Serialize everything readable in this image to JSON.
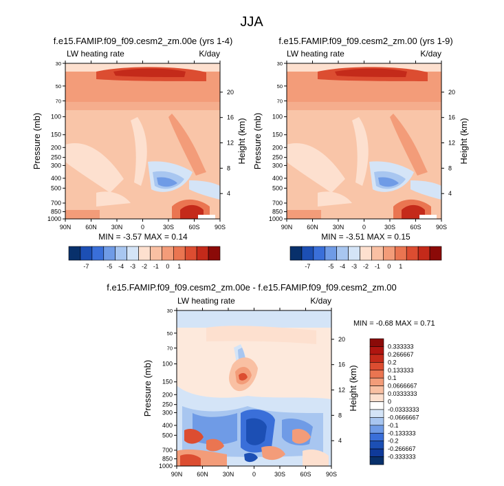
{
  "title": "JJA",
  "panels": [
    {
      "title": "f.e15.FAMIP.f09_f09.cesm2_zm.00e (yrs 1-4)",
      "left_label": "LW heating rate",
      "right_label": "K/day",
      "ylabel": "Pressure (mb)",
      "y2label": "Height (km)",
      "min_max": "MIN =  -3.57  MAX =  0.14"
    },
    {
      "title": "f.e15.FAMIP.f09_f09.cesm2_zm.00 (yrs 1-9)",
      "left_label": "LW heating rate",
      "right_label": "K/day",
      "ylabel": "Pressure (mb)",
      "y2label": "Height (km)",
      "min_max": "MIN =  -3.51  MAX =  0.15"
    },
    {
      "title": "f.e15.FAMIP.f09_f09.cesm2_zm.00e - f.e15.FAMIP.f09_f09.cesm2_zm.00",
      "left_label": "LW heating rate",
      "right_label": "K/day",
      "ylabel": "Pressure (mb)",
      "y2label": "Height (km)",
      "min_max": "MIN =  -0.68  MAX =  0.71"
    }
  ],
  "chart_data": [
    {
      "type": "heatmap",
      "title": "f.e15.FAMIP.f09_f09.cesm2_zm.00e (yrs 1-4)",
      "xlabel": "",
      "ylabel": "Pressure (mb)",
      "x_ticks": [
        "90N",
        "60N",
        "30N",
        "0",
        "30S",
        "60S",
        "90S"
      ],
      "y_ticks": [
        "30",
        "50",
        "70",
        "100",
        "150",
        "200",
        "250",
        "300",
        "400",
        "500",
        "700",
        "850",
        "1000"
      ],
      "y_ticks_numeric": [
        30,
        50,
        70,
        100,
        150,
        200,
        250,
        300,
        400,
        500,
        700,
        850,
        1000
      ],
      "height_ticks": [
        20,
        16,
        12,
        8,
        4
      ],
      "ylim": [
        1000,
        30
      ],
      "min": -3.57,
      "max": 0.14,
      "colorbar_levels": [
        "-7",
        "-5",
        "-4",
        "-3",
        "-2",
        "-1",
        "0",
        "1"
      ]
    },
    {
      "type": "heatmap",
      "title": "f.e15.FAMIP.f09_f09.cesm2_zm.00 (yrs 1-9)",
      "xlabel": "",
      "ylabel": "Pressure (mb)",
      "x_ticks": [
        "90N",
        "60N",
        "30N",
        "0",
        "30S",
        "60S",
        "90S"
      ],
      "y_ticks": [
        "30",
        "50",
        "70",
        "100",
        "150",
        "200",
        "250",
        "300",
        "400",
        "500",
        "700",
        "850",
        "1000"
      ],
      "y_ticks_numeric": [
        30,
        50,
        70,
        100,
        150,
        200,
        250,
        300,
        400,
        500,
        700,
        850,
        1000
      ],
      "height_ticks": [
        20,
        16,
        12,
        8,
        4
      ],
      "ylim": [
        1000,
        30
      ],
      "min": -3.51,
      "max": 0.15,
      "colorbar_levels": [
        "-7",
        "-5",
        "-4",
        "-3",
        "-2",
        "-1",
        "0",
        "1"
      ]
    },
    {
      "type": "heatmap",
      "title": "f.e15.FAMIP.f09_f09.cesm2_zm.00e - f.e15.FAMIP.f09_f09.cesm2_zm.00",
      "xlabel": "",
      "ylabel": "Pressure (mb)",
      "x_ticks": [
        "90N",
        "60N",
        "30N",
        "0",
        "30S",
        "60S",
        "90S"
      ],
      "y_ticks": [
        "30",
        "50",
        "70",
        "100",
        "150",
        "200",
        "250",
        "300",
        "400",
        "500",
        "700",
        "850",
        "1000"
      ],
      "y_ticks_numeric": [
        30,
        50,
        70,
        100,
        150,
        200,
        250,
        300,
        400,
        500,
        700,
        850,
        1000
      ],
      "height_ticks": [
        20,
        16,
        12,
        8,
        4
      ],
      "ylim": [
        1000,
        30
      ],
      "min": -0.68,
      "max": 0.71,
      "colorbar_levels": [
        "0.333333",
        "0.266667",
        "0.2",
        "0.133333",
        "0.1",
        "0.0666667",
        "0.0333333",
        "0",
        "-0.0333333",
        "-0.0666667",
        "-0.1",
        "-0.133333",
        "-0.2",
        "-0.266667",
        "-0.333333"
      ]
    }
  ],
  "colors": {
    "scale": [
      "#08306b",
      "#1c4fb4",
      "#3a6fd9",
      "#6f9be6",
      "#a8c6f0",
      "#d4e4f7",
      "#fde0cf",
      "#f9c0a3",
      "#f39c79",
      "#ea7551",
      "#dc4d31",
      "#c42a1a",
      "#8b0a08"
    ]
  }
}
